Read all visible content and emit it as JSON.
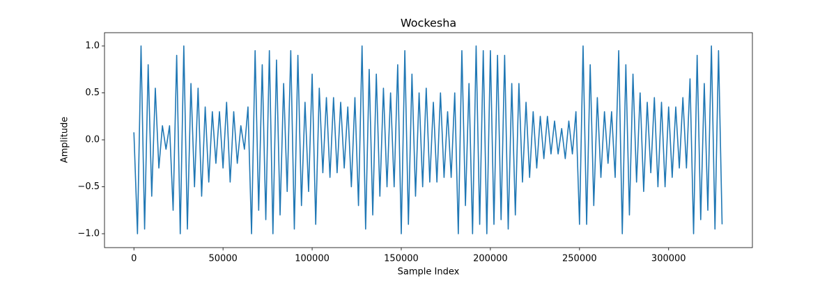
{
  "chart_data": {
    "type": "line",
    "title": "Wockesha",
    "xlabel": "Sample Index",
    "ylabel": "Amplitude",
    "x": [
      0,
      2000,
      4000,
      6000,
      8000,
      10000,
      12000,
      14000,
      16000,
      18000,
      20000,
      22000,
      24000,
      26000,
      28000,
      30000,
      32000,
      34000,
      36000,
      38000,
      40000,
      42000,
      44000,
      46000,
      48000,
      50000,
      52000,
      54000,
      56000,
      58000,
      60000,
      62000,
      64000,
      66000,
      68000,
      70000,
      72000,
      74000,
      76000,
      78000,
      80000,
      82000,
      84000,
      86000,
      88000,
      90000,
      92000,
      94000,
      96000,
      98000,
      100000,
      102000,
      104000,
      106000,
      108000,
      110000,
      112000,
      114000,
      116000,
      118000,
      120000,
      122000,
      124000,
      126000,
      128000,
      130000,
      132000,
      134000,
      136000,
      138000,
      140000,
      142000,
      144000,
      146000,
      148000,
      150000,
      152000,
      154000,
      156000,
      158000,
      160000,
      162000,
      164000,
      166000,
      168000,
      170000,
      172000,
      174000,
      176000,
      178000,
      180000,
      182000,
      184000,
      186000,
      188000,
      190000,
      192000,
      194000,
      196000,
      198000,
      200000,
      202000,
      204000,
      206000,
      208000,
      210000,
      212000,
      214000,
      216000,
      218000,
      220000,
      222000,
      224000,
      226000,
      228000,
      230000,
      232000,
      234000,
      236000,
      238000,
      240000,
      242000,
      244000,
      246000,
      248000,
      250000,
      252000,
      254000,
      256000,
      258000,
      260000,
      262000,
      264000,
      266000,
      268000,
      270000,
      272000,
      274000,
      276000,
      278000,
      280000,
      282000,
      284000,
      286000,
      288000,
      290000,
      292000,
      294000,
      296000,
      298000,
      300000,
      302000,
      304000,
      306000,
      308000,
      310000,
      312000,
      314000,
      316000,
      318000,
      320000,
      322000,
      324000,
      326000,
      328000,
      330000
    ],
    "series": [
      {
        "name": "Amplitude",
        "color": "#1f77b4",
        "values": [
          0.08,
          -1.0,
          1.0,
          -0.95,
          0.8,
          -0.6,
          0.55,
          -0.3,
          0.15,
          -0.1,
          0.15,
          -0.75,
          0.9,
          -1.0,
          1.0,
          -0.95,
          0.6,
          -0.5,
          0.55,
          -0.6,
          0.35,
          -0.45,
          0.3,
          -0.25,
          0.3,
          -0.3,
          0.4,
          -0.45,
          0.3,
          -0.25,
          0.15,
          -0.1,
          0.35,
          -1.0,
          0.95,
          -0.75,
          0.8,
          -0.85,
          0.95,
          -1.0,
          0.85,
          -0.8,
          0.6,
          -0.55,
          0.95,
          -0.95,
          0.9,
          -0.7,
          0.4,
          -0.55,
          0.7,
          -0.9,
          0.55,
          -0.35,
          0.45,
          -0.4,
          0.45,
          -0.35,
          0.4,
          -0.3,
          0.35,
          -0.5,
          0.45,
          -0.7,
          1.0,
          -0.95,
          0.75,
          -0.8,
          0.7,
          -0.6,
          0.55,
          -0.5,
          0.5,
          -0.5,
          0.8,
          -1.0,
          0.95,
          -0.9,
          0.7,
          -0.6,
          0.5,
          -0.5,
          0.55,
          -0.45,
          0.4,
          -0.45,
          0.5,
          -0.4,
          0.3,
          -0.4,
          0.5,
          -1.0,
          0.95,
          -0.7,
          0.6,
          -1.0,
          1.0,
          -0.9,
          0.95,
          -1.0,
          0.95,
          -0.9,
          0.9,
          -0.85,
          0.9,
          -0.95,
          0.6,
          -0.8,
          0.6,
          -0.45,
          0.4,
          -0.4,
          0.3,
          -0.3,
          0.25,
          -0.2,
          0.25,
          -0.15,
          0.2,
          -0.15,
          0.12,
          -0.2,
          0.2,
          -0.15,
          0.3,
          -0.9,
          1.0,
          -0.9,
          0.8,
          -0.7,
          0.45,
          -0.4,
          0.3,
          -0.25,
          0.3,
          -0.4,
          0.95,
          -1.0,
          0.8,
          -0.8,
          0.7,
          -0.45,
          0.5,
          -0.55,
          0.4,
          -0.35,
          0.45,
          -0.5,
          0.4,
          -0.5,
          0.35,
          -0.4,
          0.35,
          -0.3,
          0.45,
          -0.3,
          0.65,
          -1.0,
          0.9,
          -0.85,
          0.6,
          -0.75,
          1.0,
          -0.95,
          0.95,
          -0.9
        ]
      }
    ],
    "xlim": [
      -16500,
      347000
    ],
    "xticks": [
      0,
      50000,
      100000,
      150000,
      200000,
      250000,
      300000
    ],
    "ylim": [
      -1.148,
      1.141
    ],
    "yticks": [
      {
        "value": -1.0,
        "label": "−1.0"
      },
      {
        "value": -0.5,
        "label": "−0.5"
      },
      {
        "value": 0.0,
        "label": "0.0"
      },
      {
        "value": 0.5,
        "label": "0.5"
      },
      {
        "value": 1.0,
        "label": "1.0"
      }
    ]
  }
}
